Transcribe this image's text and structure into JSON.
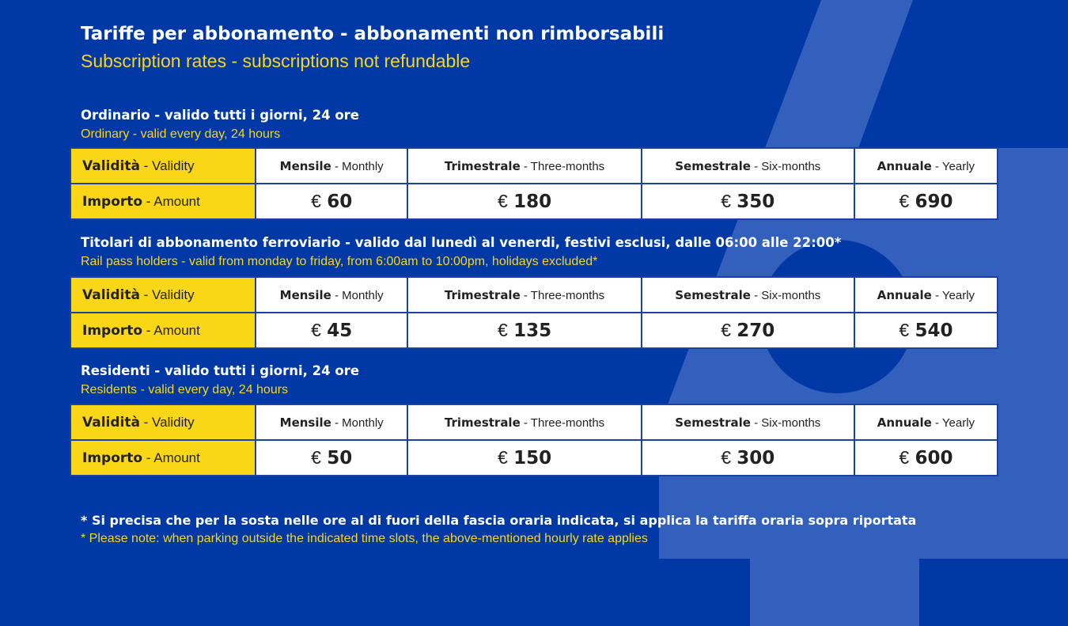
{
  "title": "Tariffe per abbonamento - abbonamenti non rimborsabili",
  "subtitle": "Subscription rates - subscriptions not refundable",
  "colors": {
    "background": "#0039a6",
    "accent_shape": "#335fbd",
    "yellow": "#f9d616"
  },
  "header_labels": {
    "validity_it": "Validità",
    "validity_en": " - Validity",
    "amount_it": "Importo",
    "amount_en": " - Amount"
  },
  "periods": [
    {
      "it": "Mensile",
      "en": " - Monthly"
    },
    {
      "it": "Trimestrale",
      "en": " - Three-months"
    },
    {
      "it": "Semestrale",
      "en": " - Six-months"
    },
    {
      "it": "Annuale",
      "en": " - Yearly"
    }
  ],
  "sections": [
    {
      "title": "Ordinario - valido tutti i giorni, 24 ore",
      "subtitle": "Ordinary - valid every day, 24 hours",
      "prices": [
        "60",
        "180",
        "350",
        "690"
      ]
    },
    {
      "title": "Titolari di abbonamento ferroviario - valido dal lunedì al venerdi, festivi esclusi, dalle 06:00 alle 22:00*",
      "subtitle": "Rail pass holders - valid from monday to friday, from 6:00am to 10:00pm, holidays excluded*",
      "prices": [
        "45",
        "135",
        "270",
        "540"
      ]
    },
    {
      "title": "Residenti - valido tutti i giorni, 24 ore",
      "subtitle": "Residents - valid every day, 24 hours",
      "prices": [
        "50",
        "150",
        "300",
        "600"
      ]
    }
  ],
  "currency": "€",
  "note_it": "* Si precisa che per la sosta nelle ore al di fuori della fascia oraria indicata, si applica la tariffa oraria sopra riportata",
  "note_en": "* Please note: when parking outside the indicated time slots, the above-mentioned hourly rate applies"
}
